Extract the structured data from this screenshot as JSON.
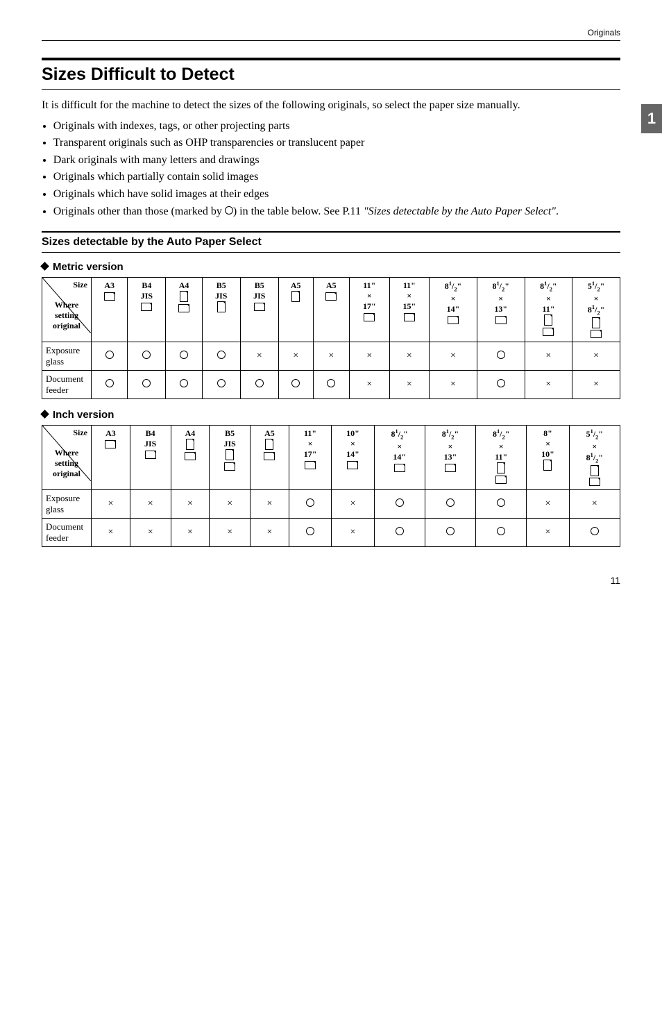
{
  "header": {
    "category": "Originals"
  },
  "sideTab": "1",
  "title": "Sizes Difficult to Detect",
  "intro": "It is difficult for the machine to detect the sizes of the following originals, so select the paper size manually.",
  "bullets": [
    "Originals with indexes, tags, or other projecting parts",
    "Transparent originals such as OHP transparencies or translucent paper",
    "Dark originals with many letters and drawings",
    "Originals which partially contain solid images",
    "Originals which have solid images at their edges"
  ],
  "bulletLast": {
    "prefix": "Originals other than those (marked by ",
    "mid": ") in the table below. See P.11 ",
    "italic": "\"Sizes detectable by the Auto Paper Select\"",
    "suffix": "."
  },
  "subsection": "Sizes detectable by the Auto Paper Select",
  "metricLabel": "Metric version",
  "inchLabel": "Inch version",
  "diag": {
    "size": "Size",
    "where": "Where setting original"
  },
  "rows": {
    "exposure": "Exposure glass",
    "feeder": "Document feeder"
  },
  "marks": {
    "o": "○",
    "x": "×"
  },
  "metric": {
    "cols": [
      {
        "l1": "A3",
        "orient": "land"
      },
      {
        "l1": "B4",
        "l2": "JIS",
        "orient": "land"
      },
      {
        "l1": "A4",
        "orient": "port",
        "orient2": "land"
      },
      {
        "l1": "B5",
        "l2": "JIS",
        "orient": "port"
      },
      {
        "l1": "B5",
        "l2": "JIS",
        "orient": "land"
      },
      {
        "l1": "A5",
        "orient": "port"
      },
      {
        "l1": "A5",
        "orient": "land"
      },
      {
        "l1": "11\"",
        "l2": "×",
        "l3": "17\"",
        "orient": "land"
      },
      {
        "l1": "11\"",
        "l2": "×",
        "l3": "15\"",
        "orient": "land"
      },
      {
        "frac1": "8",
        "fracN": "1",
        "fracD": "2",
        "suf": "\"",
        "l2": "×",
        "l3": "14\"",
        "orient": "land"
      },
      {
        "frac1": "8",
        "fracN": "1",
        "fracD": "2",
        "suf": "\"",
        "l2": "×",
        "l3": "13\"",
        "orient": "land"
      },
      {
        "frac1": "8",
        "fracN": "1",
        "fracD": "2",
        "suf": "\"",
        "l2": "×",
        "l3": "11\"",
        "orient": "port",
        "orient2": "land"
      },
      {
        "frac1": "5",
        "fracN": "1",
        "fracD": "2",
        "suf": "\"",
        "l2": "×",
        "frac2": "8",
        "frac2N": "1",
        "frac2D": "2",
        "suf2": "\"",
        "orient": "port",
        "orient2": "land"
      }
    ],
    "exposure": [
      "o",
      "o",
      "o",
      "o",
      "x",
      "x",
      "x",
      "x",
      "x",
      "x",
      "o",
      "x",
      "x"
    ],
    "feeder": [
      "o",
      "o",
      "o",
      "o",
      "o",
      "o",
      "o",
      "x",
      "x",
      "x",
      "o",
      "x",
      "x"
    ]
  },
  "inch": {
    "cols": [
      {
        "l1": "A3",
        "orient": "land"
      },
      {
        "l1": "B4",
        "l2": "JIS",
        "orient": "land"
      },
      {
        "l1": "A4",
        "orient": "port",
        "orient2": "land"
      },
      {
        "l1": "B5",
        "l2": "JIS",
        "orient": "port",
        "orient2": "land"
      },
      {
        "l1": "A5",
        "orient": "port",
        "orient2": "land"
      },
      {
        "l1": "11\"",
        "l2": "×",
        "l3": "17\"",
        "orient": "land"
      },
      {
        "l1": "10\"",
        "l2": "×",
        "l3": "14\"",
        "orient": "land"
      },
      {
        "frac1": "8",
        "fracN": "1",
        "fracD": "2",
        "suf": "\"",
        "l2": "×",
        "l3": "14\"",
        "orient": "land"
      },
      {
        "frac1": "8",
        "fracN": "1",
        "fracD": "2",
        "suf": "\"",
        "l2": "×",
        "l3": "13\"",
        "orient": "land"
      },
      {
        "frac1": "8",
        "fracN": "1",
        "fracD": "2",
        "suf": "\"",
        "l2": "×",
        "l3": "11\"",
        "orient": "port",
        "orient2": "land"
      },
      {
        "l1": "8\"",
        "l2": "×",
        "l3": "10\"",
        "orient": "port"
      },
      {
        "frac1": "5",
        "fracN": "1",
        "fracD": "2",
        "suf": "\"",
        "l2": "×",
        "frac2": "8",
        "frac2N": "1",
        "frac2D": "2",
        "suf2": "\"",
        "orient": "port",
        "orient2": "land"
      }
    ],
    "exposure": [
      "x",
      "x",
      "x",
      "x",
      "x",
      "o",
      "x",
      "o",
      "o",
      "o",
      "x",
      "x"
    ],
    "feeder": [
      "x",
      "x",
      "x",
      "x",
      "x",
      "o",
      "x",
      "o",
      "o",
      "o",
      "x",
      "o"
    ]
  },
  "pageNum": "11"
}
